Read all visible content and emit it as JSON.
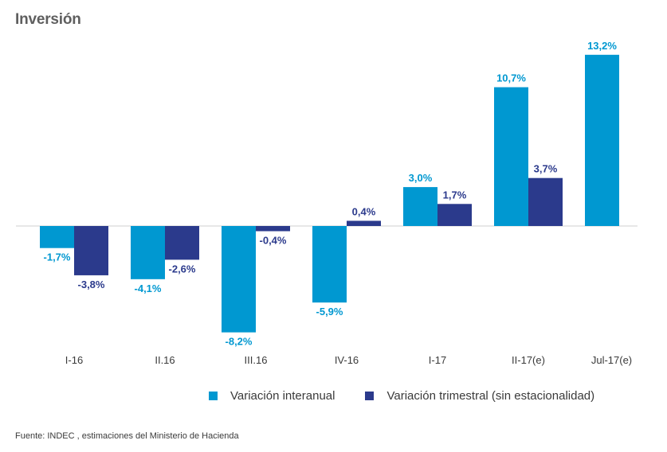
{
  "title": "Inversión",
  "source": "Fuente: INDEC , estimaciones del Ministerio de Hacienda",
  "colors": {
    "interanual": "#0098d1",
    "trimestral": "#2b3a8c",
    "baseline": "#cfcfcf",
    "tick_text": "#3a3a3a"
  },
  "chart_data": {
    "type": "bar",
    "title": "Inversión",
    "xlabel": "",
    "ylabel": "",
    "ylim": [
      -8.2,
      13.2
    ],
    "grid": false,
    "legend_position": "bottom",
    "categories": [
      "I-16",
      "II.16",
      "III.16",
      "IV-16",
      "I-17",
      "II-17(e)",
      "Jul-17(e)"
    ],
    "series": [
      {
        "name": "Variación interanual",
        "values": [
          -1.7,
          -4.1,
          -8.2,
          -5.9,
          3.0,
          10.7,
          13.2
        ],
        "labels": [
          "-1,7%",
          "-4,1%",
          "-8,2%",
          "-5,9%",
          "3,0%",
          "10,7%",
          "13,2%"
        ]
      },
      {
        "name": "Variación trimestral (sin estacionalidad)",
        "values": [
          -3.8,
          -2.6,
          -0.4,
          0.4,
          1.7,
          3.7,
          null
        ],
        "labels": [
          "-3,8%",
          "-2,6%",
          "-0,4%",
          "0,4%",
          "1,7%",
          "3,7%",
          ""
        ]
      }
    ]
  }
}
